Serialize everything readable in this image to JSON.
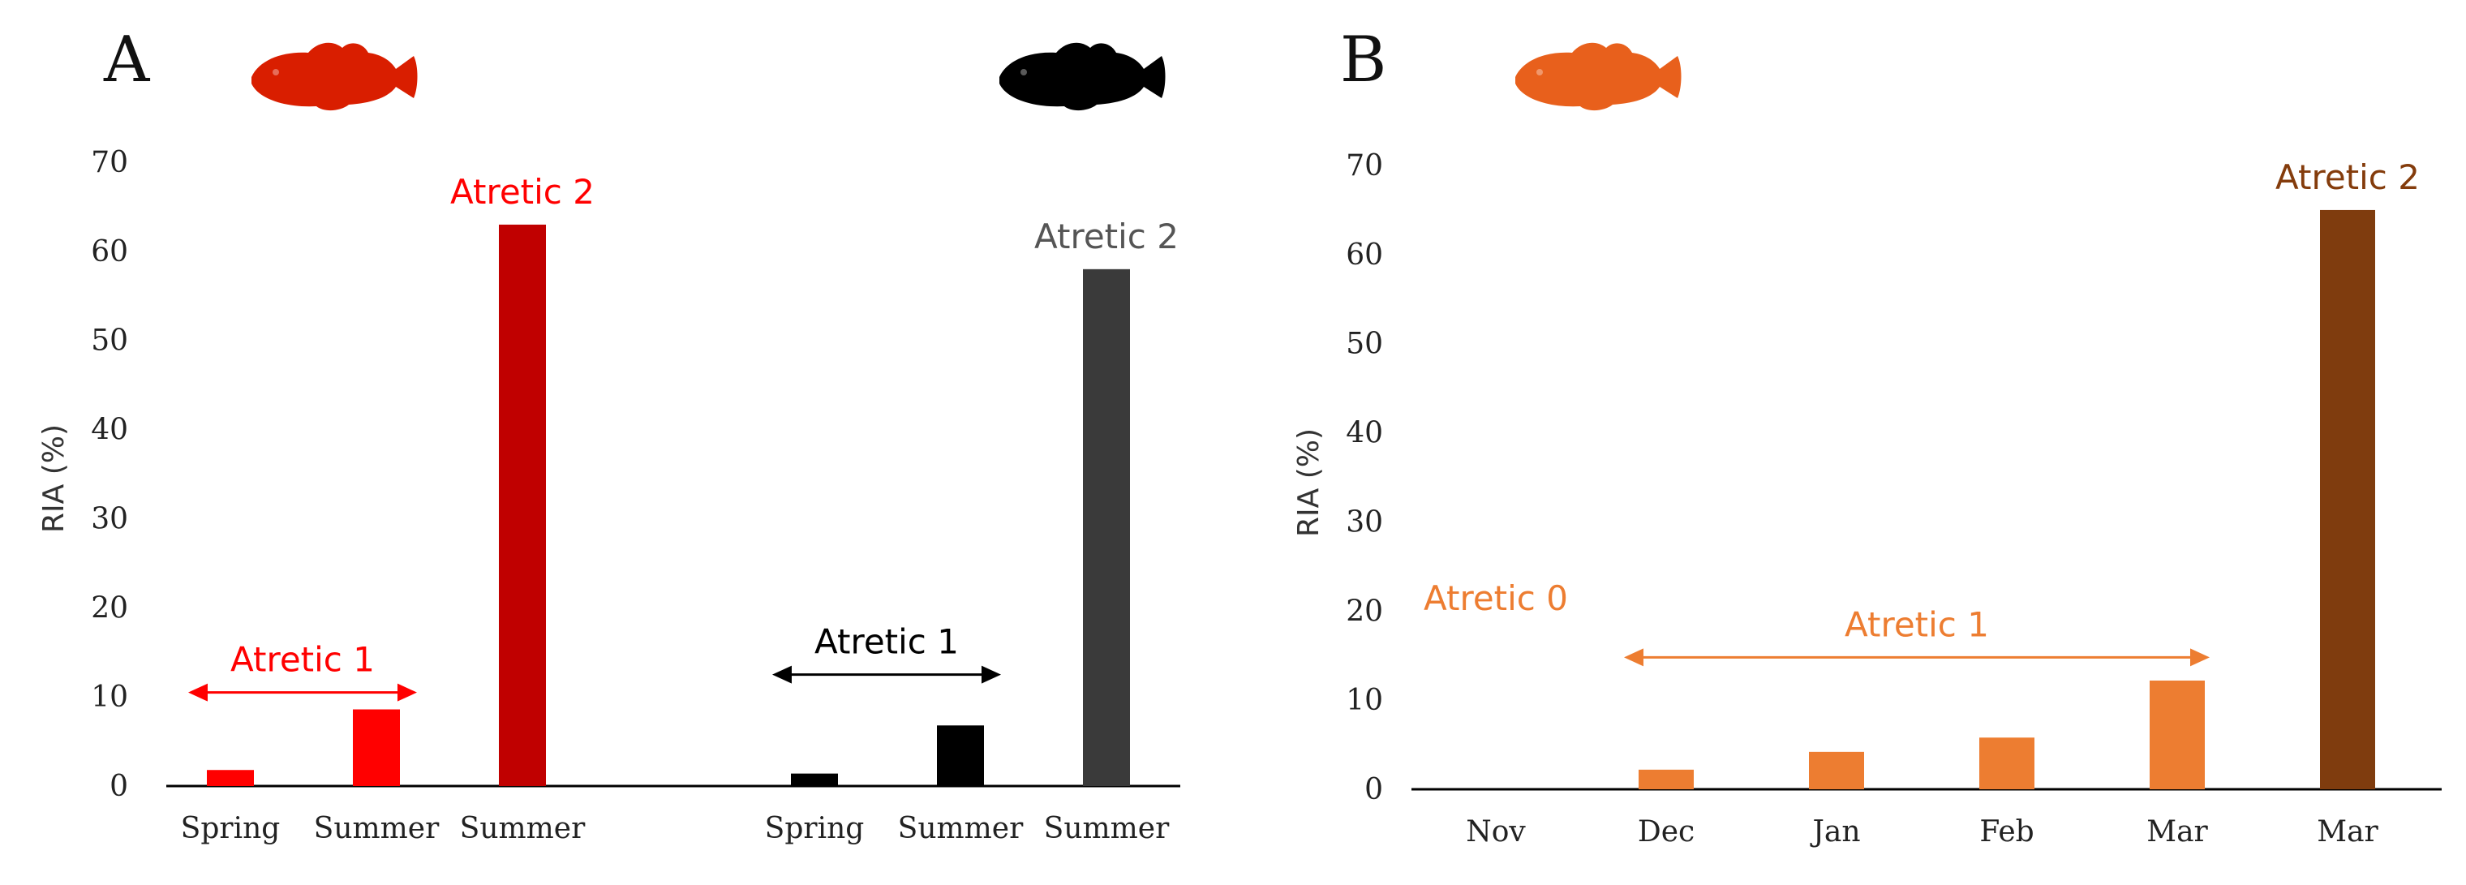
{
  "chart_data": [
    {
      "type": "bar",
      "panel": "A",
      "title": "",
      "xlabel": "",
      "ylabel": "RIA (%)",
      "ylim": [
        0,
        70
      ],
      "yticks": [
        0,
        10,
        20,
        30,
        40,
        50,
        60,
        70
      ],
      "grid": false,
      "legend": "none",
      "groups": [
        {
          "icon": "red-fish-icon",
          "categories": [
            "Spring",
            "Summer",
            "Summer"
          ],
          "values": [
            1.8,
            8.6,
            63
          ],
          "colors": [
            "#ff0000",
            "#ff0000",
            "#c00000"
          ],
          "annotations": [
            {
              "text": "Atretic 1",
              "type": "arrow-span",
              "from": 0,
              "to": 1,
              "y": 10.5,
              "color": "#ff0000"
            },
            {
              "text": "Atretic 2",
              "type": "label",
              "at": 2,
              "color": "#ff0000"
            }
          ]
        },
        {
          "icon": "black-fish-icon",
          "categories": [
            "Spring",
            "Summer",
            "Summer"
          ],
          "values": [
            1.4,
            6.8,
            58
          ],
          "colors": [
            "#000000",
            "#000000",
            "#3a3a3a"
          ],
          "annotations": [
            {
              "text": "Atretic 1",
              "type": "arrow-span",
              "from": 0,
              "to": 1,
              "y": 12.5,
              "color": "#000000"
            },
            {
              "text": "Atretic 2",
              "type": "label",
              "at": 2,
              "color": "#555555"
            }
          ]
        }
      ]
    },
    {
      "type": "bar",
      "panel": "B",
      "title": "",
      "xlabel": "",
      "ylabel": "RIA (%)",
      "ylim": [
        0,
        70
      ],
      "yticks": [
        0,
        10,
        20,
        30,
        40,
        50,
        60,
        70
      ],
      "grid": false,
      "legend": "none",
      "icon": "orange-fish-icon",
      "categories": [
        "Nov",
        "Dec",
        "Jan",
        "Feb",
        "Mar",
        "Mar"
      ],
      "values": [
        0,
        2.2,
        4.2,
        5.8,
        12.2,
        65
      ],
      "colors": [
        "#ed7d31",
        "#ed7d31",
        "#ed7d31",
        "#ed7d31",
        "#ed7d31",
        "#7f3c0e"
      ],
      "annotations": [
        {
          "text": "Atretic 0",
          "type": "label",
          "at": 0,
          "color": "#ed7d31"
        },
        {
          "text": "Atretic 1",
          "type": "arrow-span",
          "from": 1,
          "to": 4,
          "y": 14.8,
          "color": "#ed7d31"
        },
        {
          "text": "Atretic 2",
          "type": "label",
          "at": 5,
          "color": "#843c0c"
        }
      ]
    }
  ],
  "colors": {
    "red": "#ff0000",
    "dark_red": "#c00000",
    "black": "#000000",
    "dark_gray": "#3a3a3a",
    "orange": "#ed7d31",
    "brown": "#7f3c0e",
    "fish_red": "#d91e00",
    "fish_orange": "#e8601c"
  }
}
